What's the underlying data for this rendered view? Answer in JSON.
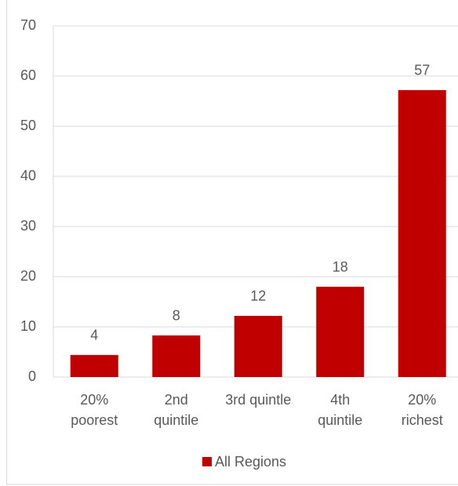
{
  "chart_data": {
    "type": "bar",
    "categories": [
      "20%\npoorest",
      "2nd\nquintile",
      "3rd quintle",
      "4th\nquintile",
      "20%\nrichest"
    ],
    "series": [
      {
        "name": "All Regions",
        "color": "#c00000",
        "values": [
          4.4,
          8.3,
          12.2,
          18,
          57.2
        ],
        "value_labels": [
          "4",
          "8",
          "12",
          "18",
          "57"
        ]
      }
    ],
    "ylim": [
      0,
      70
    ],
    "yticks": [
      0,
      10,
      20,
      30,
      40,
      50,
      60,
      70
    ],
    "grid": true,
    "legend": "bottom"
  }
}
